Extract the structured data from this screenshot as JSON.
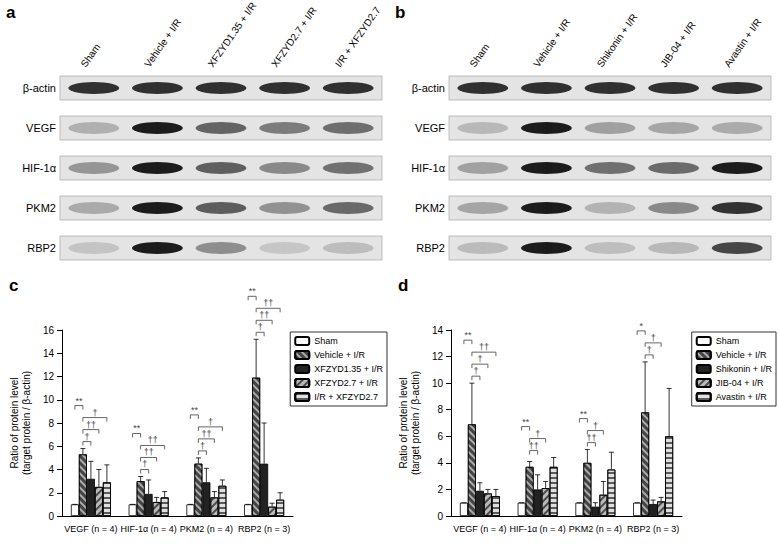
{
  "blots": [
    {
      "panel": "a",
      "lanes": [
        "Sham",
        "Vehicle + I/R",
        "XFZYD1.35 + I/R",
        "XFZYD2.7 + I/R",
        "I/R + XFZYD2.7"
      ],
      "rows": [
        "β-actin",
        "VEGF",
        "HIF-1α",
        "PKM2",
        "RBP2"
      ]
    },
    {
      "panel": "b",
      "lanes": [
        "Sham",
        "Vehicle + I/R",
        "Shikonin + I/R",
        "JIB-04 + I/R",
        "Avastin + I/R"
      ],
      "rows": [
        "β-actin",
        "VEGF",
        "HIF-1α",
        "PKM2",
        "RBP2"
      ]
    }
  ],
  "chart_data": [
    {
      "panel": "c",
      "type": "bar",
      "categories": [
        "VEGF (n = 4)",
        "HIF-1α (n = 4)",
        "PKM2 (n = 4)",
        "RBP2 (n = 3)"
      ],
      "series": [
        {
          "name": "Sham",
          "color": "#ffffff",
          "values": [
            1,
            1,
            1,
            1
          ],
          "errors": [
            0,
            0,
            0,
            0
          ]
        },
        {
          "name": "Vehicle + I/R",
          "color": "#444444",
          "values": [
            5.3,
            3.0,
            4.5,
            11.9
          ],
          "errors": [
            0.5,
            0.4,
            0.5,
            3.3
          ]
        },
        {
          "name": "XFZYD1.35 + I/R",
          "color": "#222222",
          "values": [
            3.2,
            1.9,
            2.9,
            4.5
          ],
          "errors": [
            1.5,
            1.2,
            1.2,
            3.5
          ]
        },
        {
          "name": "XFZYD2.7 + I/R",
          "color": "#bbbbbb",
          "values": [
            2.5,
            1.2,
            1.6,
            0.8
          ],
          "errors": [
            1.5,
            0.4,
            0.5,
            0.3
          ]
        },
        {
          "name": "I/R + XFZYD2.7",
          "color": "#e0e0e0",
          "values": [
            2.9,
            1.6,
            2.6,
            1.4
          ],
          "errors": [
            1.5,
            0.5,
            0.5,
            0.6
          ]
        }
      ],
      "ylim": [
        0,
        16
      ],
      "yticks": [
        0,
        2,
        4,
        6,
        8,
        10,
        12,
        14,
        16
      ],
      "ylabel": "Ratio of protein level\n(target protein / β-actin)",
      "grid": false,
      "legend": "right",
      "significance": [
        {
          "category": "VEGF (n = 4)",
          "from": "Vehicle + I/R",
          "to": "XFZYD1.35 + I/R",
          "label": "†"
        },
        {
          "category": "VEGF (n = 4)",
          "from": "Vehicle + I/R",
          "to": "XFZYD2.7 + I/R",
          "label": "††"
        },
        {
          "category": "VEGF (n = 4)",
          "from": "Vehicle + I/R",
          "to": "I/R + XFZYD2.7",
          "label": "†"
        },
        {
          "category": "VEGF (n = 4)",
          "from": "Sham",
          "to": "Vehicle + I/R",
          "label": "**"
        },
        {
          "category": "HIF-1α (n = 4)",
          "from": "Vehicle + I/R",
          "to": "XFZYD1.35 + I/R",
          "label": "†"
        },
        {
          "category": "HIF-1α (n = 4)",
          "from": "Vehicle + I/R",
          "to": "XFZYD2.7 + I/R",
          "label": "††"
        },
        {
          "category": "HIF-1α (n = 4)",
          "from": "Vehicle + I/R",
          "to": "I/R + XFZYD2.7",
          "label": "††"
        },
        {
          "category": "HIF-1α (n = 4)",
          "from": "Sham",
          "to": "Vehicle + I/R",
          "label": "**"
        },
        {
          "category": "PKM2 (n = 4)",
          "from": "Vehicle + I/R",
          "to": "XFZYD1.35 + I/R",
          "label": "†"
        },
        {
          "category": "PKM2 (n = 4)",
          "from": "Vehicle + I/R",
          "to": "XFZYD2.7 + I/R",
          "label": "††"
        },
        {
          "category": "PKM2 (n = 4)",
          "from": "Vehicle + I/R",
          "to": "I/R + XFZYD2.7",
          "label": "†"
        },
        {
          "category": "PKM2 (n = 4)",
          "from": "Sham",
          "to": "Vehicle + I/R",
          "label": "**"
        },
        {
          "category": "RBP2 (n = 3)",
          "from": "Vehicle + I/R",
          "to": "XFZYD1.35 + I/R",
          "label": "†"
        },
        {
          "category": "RBP2 (n = 3)",
          "from": "Vehicle + I/R",
          "to": "XFZYD2.7 + I/R",
          "label": "††"
        },
        {
          "category": "RBP2 (n = 3)",
          "from": "Vehicle + I/R",
          "to": "I/R + XFZYD2.7",
          "label": "††"
        },
        {
          "category": "RBP2 (n = 3)",
          "from": "Sham",
          "to": "Vehicle + I/R",
          "label": "**"
        }
      ]
    },
    {
      "panel": "d",
      "type": "bar",
      "categories": [
        "VEGF (n = 4)",
        "HIF-1α (n = 4)",
        "PKM2 (n = 4)",
        "RBP2 (n = 3)"
      ],
      "series": [
        {
          "name": "Sham",
          "color": "#ffffff",
          "values": [
            1,
            1,
            1,
            1
          ],
          "errors": [
            0,
            0,
            0,
            0
          ]
        },
        {
          "name": "Vehicle + I/R",
          "color": "#444444",
          "values": [
            6.9,
            3.7,
            4.0,
            7.8
          ],
          "errors": [
            3.1,
            0.4,
            1.0,
            3.8
          ]
        },
        {
          "name": "Shikonin + I/R",
          "color": "#222222",
          "values": [
            1.9,
            2.0,
            0.7,
            0.9
          ],
          "errors": [
            0.6,
            1.1,
            0.3,
            0.3
          ]
        },
        {
          "name": "JIB-04 + I/R",
          "color": "#bbbbbb",
          "values": [
            1.7,
            2.1,
            1.6,
            1.1
          ],
          "errors": [
            0.3,
            0.5,
            1.0,
            0.3
          ]
        },
        {
          "name": "Avastin + I/R",
          "color": "#e0e0e0",
          "values": [
            1.5,
            3.7,
            3.5,
            6.0
          ],
          "errors": [
            0.5,
            0.7,
            1.3,
            3.6
          ]
        }
      ],
      "ylim": [
        0,
        14
      ],
      "yticks": [
        0,
        2,
        4,
        6,
        8,
        10,
        12,
        14
      ],
      "ylabel": "Ratio of protein level\n(target protein / β-actin)",
      "grid": false,
      "legend": "right",
      "significance": [
        {
          "category": "VEGF (n = 4)",
          "from": "Vehicle + I/R",
          "to": "Shikonin + I/R",
          "label": "†"
        },
        {
          "category": "VEGF (n = 4)",
          "from": "Vehicle + I/R",
          "to": "JIB-04 + I/R",
          "label": "†"
        },
        {
          "category": "VEGF (n = 4)",
          "from": "Vehicle + I/R",
          "to": "Avastin + I/R",
          "label": "††"
        },
        {
          "category": "VEGF (n = 4)",
          "from": "Sham",
          "to": "Vehicle + I/R",
          "label": "**"
        },
        {
          "category": "HIF-1α (n = 4)",
          "from": "Vehicle + I/R",
          "to": "Shikonin + I/R",
          "label": "††"
        },
        {
          "category": "HIF-1α (n = 4)",
          "from": "Vehicle + I/R",
          "to": "JIB-04 + I/R",
          "label": "†"
        },
        {
          "category": "HIF-1α (n = 4)",
          "from": "Sham",
          "to": "Vehicle + I/R",
          "label": "**"
        },
        {
          "category": "PKM2 (n = 4)",
          "from": "Vehicle + I/R",
          "to": "Shikonin + I/R",
          "label": "††"
        },
        {
          "category": "PKM2 (n = 4)",
          "from": "Vehicle + I/R",
          "to": "JIB-04 + I/R",
          "label": "†"
        },
        {
          "category": "PKM2 (n = 4)",
          "from": "Sham",
          "to": "Vehicle + I/R",
          "label": "**"
        },
        {
          "category": "RBP2 (n = 3)",
          "from": "Vehicle + I/R",
          "to": "Shikonin + I/R",
          "label": "†"
        },
        {
          "category": "RBP2 (n = 3)",
          "from": "Vehicle + I/R",
          "to": "JIB-04 + I/R",
          "label": "†"
        },
        {
          "category": "RBP2 (n = 3)",
          "from": "Sham",
          "to": "Vehicle + I/R",
          "label": "*"
        }
      ]
    }
  ]
}
